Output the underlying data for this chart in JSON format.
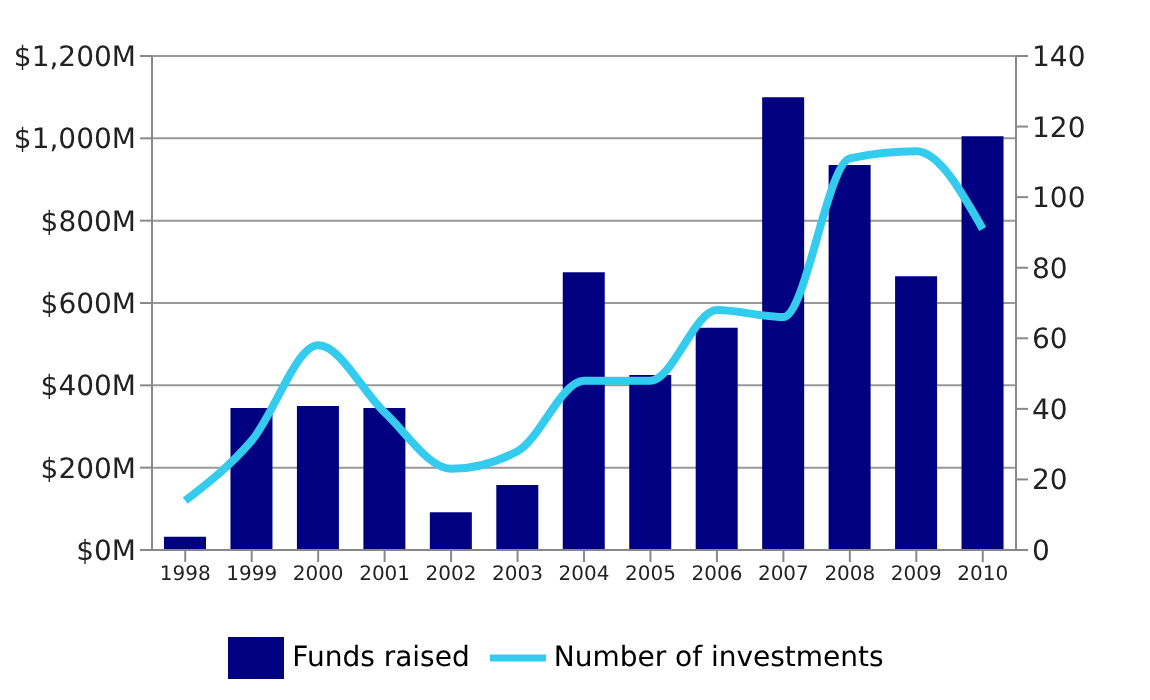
{
  "chart_data": {
    "type": "bar",
    "categories": [
      "1998",
      "1999",
      "2000",
      "2001",
      "2002",
      "2003",
      "2004",
      "2005",
      "2006",
      "2007",
      "2008",
      "2009",
      "2010"
    ],
    "series": [
      {
        "name": "Funds raised",
        "color": "#000080",
        "values": [
          32,
          345,
          350,
          345,
          92,
          158,
          675,
          425,
          540,
          1100,
          935,
          665,
          1005
        ]
      },
      {
        "name": "Number of investments",
        "type": "line",
        "axis": "y2",
        "color": "#33ccee",
        "values": [
          14,
          31,
          58,
          39,
          23,
          28,
          48,
          48,
          68,
          66,
          111,
          113,
          91
        ]
      }
    ],
    "ylim": [
      0,
      1200
    ],
    "yticks": [
      {
        "value": 0,
        "label": "$0M"
      },
      {
        "value": 200,
        "label": "$200M"
      },
      {
        "value": 400,
        "label": "$400M"
      },
      {
        "value": 600,
        "label": "$600M"
      },
      {
        "value": 800,
        "label": "$800M"
      },
      {
        "value": 1000,
        "label": "$1,000M"
      },
      {
        "value": 1200,
        "label": "$1,200M"
      }
    ],
    "y2lim": [
      0,
      140
    ],
    "y2ticks": [
      0,
      20,
      40,
      60,
      80,
      100,
      120,
      140
    ],
    "grid": "y",
    "legend": "bottom",
    "marker": "none"
  }
}
